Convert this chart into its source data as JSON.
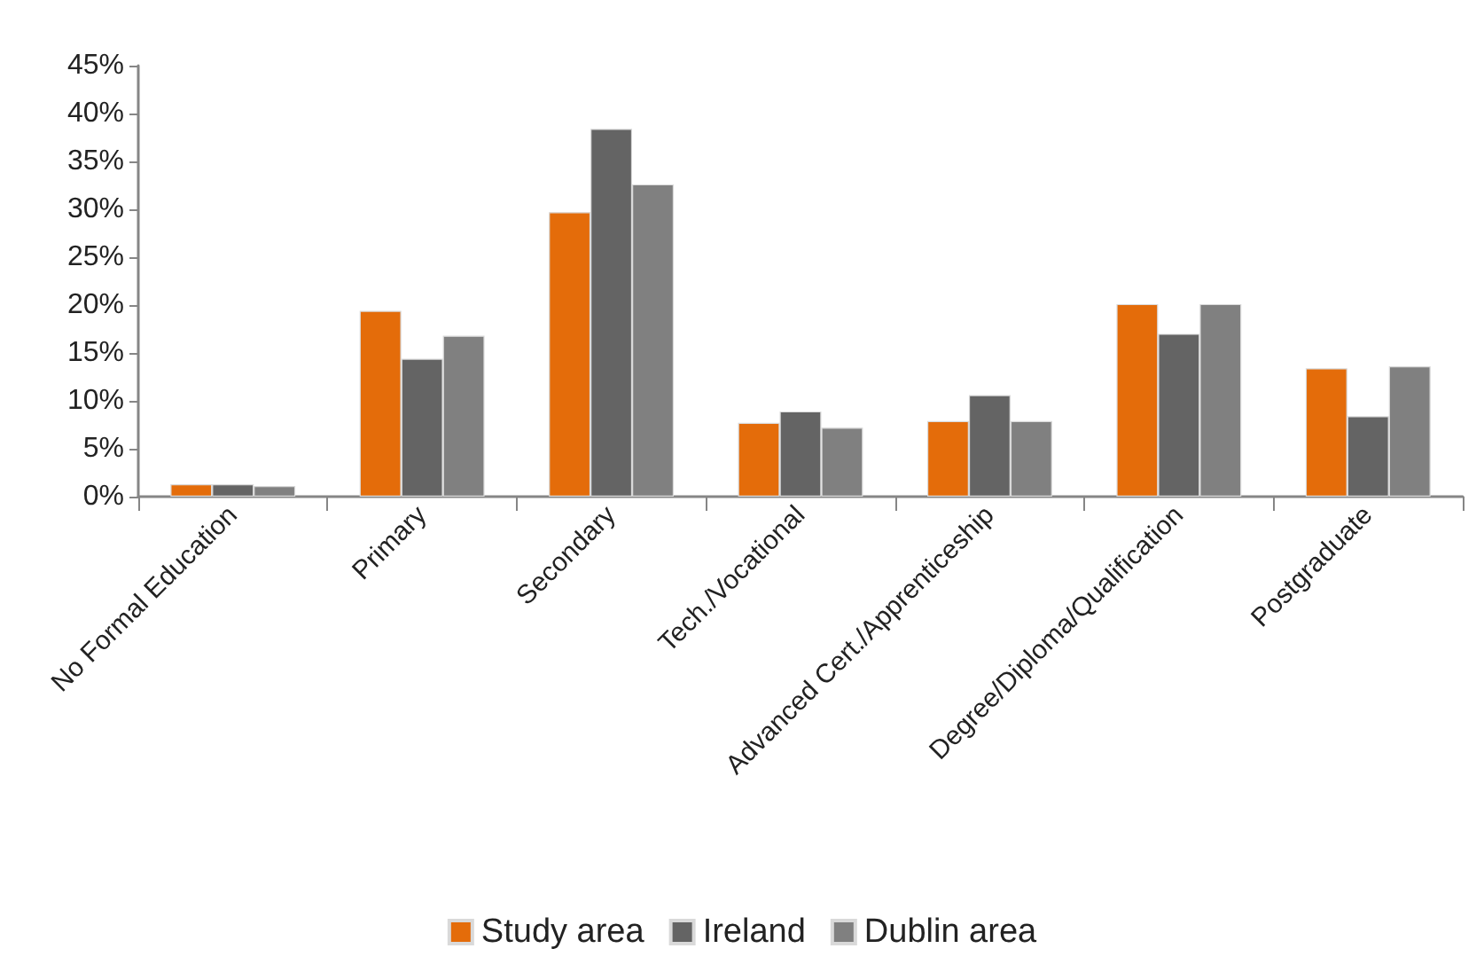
{
  "chart_data": {
    "type": "bar",
    "categories": [
      "No Formal Education",
      "Primary",
      "Secondary",
      "Tech./Vocational",
      "Advanced Cert./Apprenticeship",
      "Degree/Diploma/Qualification",
      "Postgraduate"
    ],
    "series": [
      {
        "name": "Study area",
        "color": "#e46c0a",
        "values": [
          1.3,
          19.4,
          29.7,
          7.7,
          7.9,
          20.1,
          13.4
        ]
      },
      {
        "name": "Ireland",
        "color": "#646464",
        "values": [
          1.3,
          14.4,
          38.4,
          8.9,
          10.6,
          17.0,
          8.4
        ]
      },
      {
        "name": "Dublin area",
        "color": "#808080",
        "values": [
          1.1,
          16.8,
          32.6,
          7.2,
          7.9,
          20.1,
          13.6
        ]
      }
    ],
    "ylim": [
      0,
      45
    ],
    "yticks": [
      {
        "value": 0,
        "label": "0%"
      },
      {
        "value": 5,
        "label": "5%"
      },
      {
        "value": 10,
        "label": "10%"
      },
      {
        "value": 15,
        "label": "15%"
      },
      {
        "value": 20,
        "label": "20%"
      },
      {
        "value": 25,
        "label": "25%"
      },
      {
        "value": 30,
        "label": "30%"
      },
      {
        "value": 35,
        "label": "35%"
      },
      {
        "value": 40,
        "label": "40%"
      },
      {
        "value": 45,
        "label": "45%"
      }
    ],
    "grid": false,
    "legend": "bottom"
  }
}
